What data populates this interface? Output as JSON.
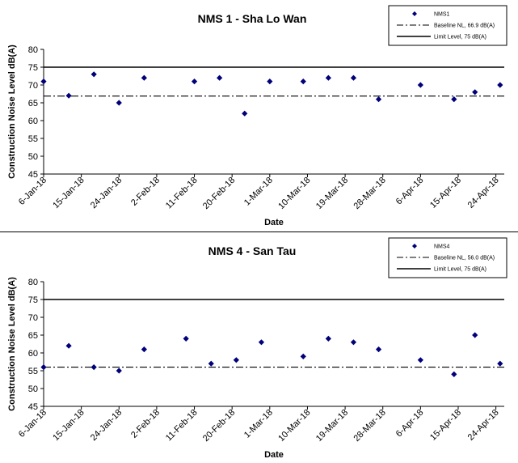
{
  "chart_data": [
    {
      "type": "scatter",
      "title": "NMS 1 - Sha Lo Wan",
      "xlabel": "Date",
      "ylabel": "Construction Noise Level  dB(A)",
      "ylim": [
        45,
        80
      ],
      "yticks": [
        45,
        50,
        55,
        60,
        65,
        70,
        75,
        80
      ],
      "xlim": [
        "2018-01-06",
        "2018-04-26"
      ],
      "xticks": [
        "2018-01-06",
        "2018-01-15",
        "2018-01-24",
        "2018-02-02",
        "2018-02-11",
        "2018-02-20",
        "2018-03-01",
        "2018-03-10",
        "2018-03-19",
        "2018-03-28",
        "2018-04-06",
        "2018-04-15",
        "2018-04-24"
      ],
      "xtick_labels": [
        "6-Jan-18",
        "15-Jan-18",
        "24-Jan-18",
        "2-Feb-18",
        "11-Feb-18",
        "20-Feb-18",
        "1-Mar-18",
        "10-Mar-18",
        "19-Mar-18",
        "28-Mar-18",
        "6-Apr-18",
        "15-Apr-18",
        "24-Apr-18"
      ],
      "legend_position": "top-right",
      "series": [
        {
          "name": "NMS1",
          "kind": "points",
          "color": "#00007a",
          "x": [
            "2018-01-06",
            "2018-01-12",
            "2018-01-18",
            "2018-01-24",
            "2018-01-30",
            "2018-02-11",
            "2018-02-17",
            "2018-02-23",
            "2018-03-01",
            "2018-03-09",
            "2018-03-15",
            "2018-03-21",
            "2018-03-27",
            "2018-04-06",
            "2018-04-14",
            "2018-04-19",
            "2018-04-25"
          ],
          "y": [
            71,
            67,
            73,
            65,
            72,
            71,
            72,
            62,
            71,
            71,
            72,
            72,
            66,
            70,
            66,
            68,
            70
          ]
        },
        {
          "name": "Baseline NL, 66.9 dB(A)",
          "kind": "hline",
          "style": "dashdot",
          "color": "#000000",
          "y": 66.9
        },
        {
          "name": "Limit Level, 75 dB(A)",
          "kind": "hline",
          "style": "solid",
          "color": "#000000",
          "y": 75
        }
      ]
    },
    {
      "type": "scatter",
      "title": "NMS 4 - San Tau",
      "xlabel": "Date",
      "ylabel": "Construction Noise Level  dB(A)",
      "ylim": [
        45,
        80
      ],
      "yticks": [
        45,
        50,
        55,
        60,
        65,
        70,
        75,
        80
      ],
      "xlim": [
        "2018-01-06",
        "2018-04-26"
      ],
      "xticks": [
        "2018-01-06",
        "2018-01-15",
        "2018-01-24",
        "2018-02-02",
        "2018-02-11",
        "2018-02-20",
        "2018-03-01",
        "2018-03-10",
        "2018-03-19",
        "2018-03-28",
        "2018-04-06",
        "2018-04-15",
        "2018-04-24"
      ],
      "xtick_labels": [
        "6-Jan-18",
        "15-Jan-18",
        "24-Jan-18",
        "2-Feb-18",
        "11-Feb-18",
        "20-Feb-18",
        "1-Mar-18",
        "10-Mar-18",
        "19-Mar-18",
        "28-Mar-18",
        "6-Apr-18",
        "15-Apr-18",
        "24-Apr-18"
      ],
      "legend_position": "top-right",
      "series": [
        {
          "name": "NMS4",
          "kind": "points",
          "color": "#00007a",
          "x": [
            "2018-01-06",
            "2018-01-12",
            "2018-01-18",
            "2018-01-24",
            "2018-01-30",
            "2018-02-09",
            "2018-02-15",
            "2018-02-21",
            "2018-02-27",
            "2018-03-09",
            "2018-03-15",
            "2018-03-21",
            "2018-03-27",
            "2018-04-06",
            "2018-04-14",
            "2018-04-19",
            "2018-04-25"
          ],
          "y": [
            56,
            62,
            56,
            55,
            61,
            64,
            57,
            58,
            63,
            59,
            64,
            63,
            61,
            58,
            54,
            65,
            57
          ]
        },
        {
          "name": "Baseline NL, 56.0 dB(A)",
          "kind": "hline",
          "style": "dashdot",
          "color": "#000000",
          "y": 56.0
        },
        {
          "name": "Limit Level, 75 dB(A)",
          "kind": "hline",
          "style": "solid",
          "color": "#000000",
          "y": 75
        }
      ]
    }
  ]
}
